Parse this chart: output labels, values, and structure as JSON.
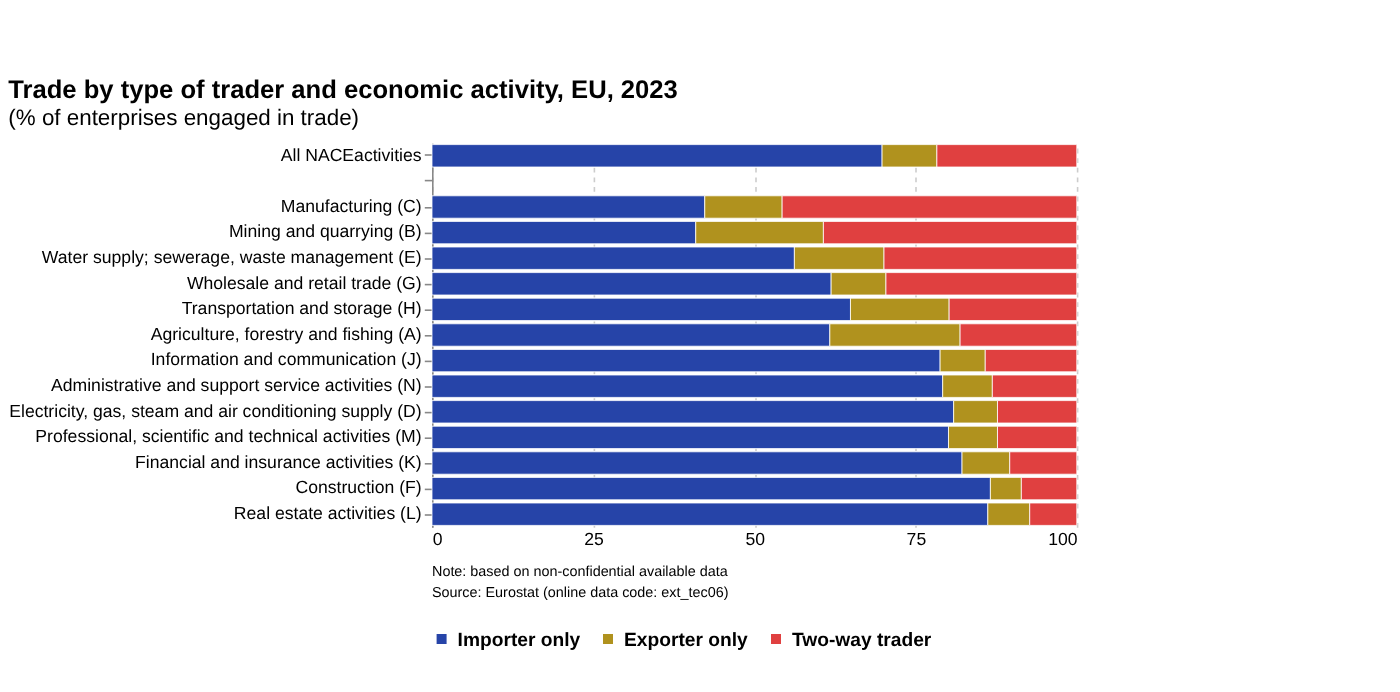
{
  "chart_data": {
    "type": "bar",
    "orientation": "horizontal",
    "stacked": true,
    "title": "Trade by type of trader and economic activity, EU, 2023",
    "subtitle": "(% of enterprises engaged in trade)",
    "categories": [
      "All NACEactivities",
      null,
      "Manufacturing (C)",
      "Mining and quarrying (B)",
      "Water supply; sewerage, waste management (E)",
      "Wholesale and retail trade (G)",
      "Transportation and storage (H)",
      "Agriculture, forestry and fishing (A)",
      "Information and communication (J)",
      "Administrative and support service activities (N)",
      "Electricity, gas, steam and air conditioning supply (D)",
      "Professional, scientific and technical activities (M)",
      "Financial and insurance activities (K)",
      "Construction (F)",
      "Real estate activities (L)"
    ],
    "series": [
      {
        "name": "Importer only",
        "color": "#2644a8",
        "values": [
          69.8,
          null,
          42.3,
          40.9,
          56.2,
          61.9,
          64.9,
          61.7,
          78.8,
          79.2,
          80.9,
          80.1,
          82.2,
          86.6,
          86.2
        ]
      },
      {
        "name": "Exporter only",
        "color": "#b0921e",
        "values": [
          8.5,
          null,
          12.0,
          19.8,
          13.9,
          8.5,
          15.3,
          20.2,
          7.0,
          7.7,
          6.8,
          7.6,
          7.4,
          4.8,
          6.5
        ]
      },
      {
        "name": "Two-way trader",
        "color": "#e04040",
        "values": [
          21.7,
          null,
          45.7,
          39.3,
          29.9,
          29.6,
          19.8,
          18.1,
          14.2,
          13.1,
          12.3,
          12.3,
          10.4,
          8.6,
          7.3
        ]
      }
    ],
    "xlim": [
      0,
      100
    ],
    "xticks": [
      0,
      25,
      50,
      75,
      100
    ],
    "grid": "x",
    "legend": "bottom",
    "annotations": [
      "Note: based on non-confidential available data",
      "Source: Eurostat (online data code: ext_tec06)"
    ]
  }
}
